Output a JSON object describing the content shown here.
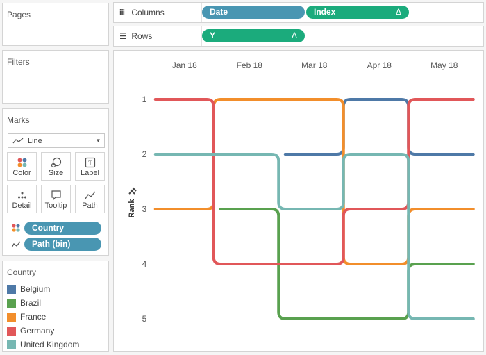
{
  "left_panel": {
    "pages_title": "Pages",
    "filters_title": "Filters",
    "marks": {
      "title": "Marks",
      "mark_type": "Line",
      "buttons": [
        {
          "label": "Color",
          "icon": "color-dots-icon"
        },
        {
          "label": "Size",
          "icon": "size-icon"
        },
        {
          "label": "Label",
          "icon": "label-icon"
        },
        {
          "label": "Detail",
          "icon": "detail-dots-icon"
        },
        {
          "label": "Tooltip",
          "icon": "tooltip-icon"
        },
        {
          "label": "Path",
          "icon": "path-icon"
        }
      ],
      "fields": [
        {
          "label": "Country",
          "icon": "color-dots-icon"
        },
        {
          "label": "Path (bin)",
          "icon": "path-icon"
        }
      ]
    },
    "legend": {
      "title": "Country",
      "items": [
        {
          "label": "Belgium",
          "color": "#4e79a7"
        },
        {
          "label": "Brazil",
          "color": "#59a14f"
        },
        {
          "label": "France",
          "color": "#f28e2b"
        },
        {
          "label": "Germany",
          "color": "#e15759"
        },
        {
          "label": "United Kingdom",
          "color": "#76b7b2"
        }
      ]
    }
  },
  "shelves": {
    "columns": {
      "label": "Columns",
      "pills": [
        {
          "label": "Date",
          "color": "#4996b2",
          "delta": ""
        },
        {
          "label": "Index",
          "color": "#1bab7c",
          "delta": "Δ"
        }
      ]
    },
    "rows": {
      "label": "Rows",
      "pills": [
        {
          "label": "Y",
          "color": "#1bab7c",
          "delta": "Δ"
        }
      ]
    }
  },
  "chart_data": {
    "type": "line",
    "subtype": "bump",
    "categories": [
      "Jan 18",
      "Feb 18",
      "Mar 18",
      "Apr 18",
      "May 18"
    ],
    "ylabel": "Rank",
    "y_ticks": [
      1,
      2,
      3,
      4,
      5
    ],
    "y_reversed": true,
    "series": [
      {
        "name": "Belgium",
        "color": "#4e79a7",
        "values": [
          null,
          null,
          2,
          1,
          2
        ]
      },
      {
        "name": "Brazil",
        "color": "#59a14f",
        "values": [
          null,
          3,
          5,
          5,
          4
        ]
      },
      {
        "name": "France",
        "color": "#f28e2b",
        "values": [
          3,
          1,
          1,
          4,
          3
        ]
      },
      {
        "name": "Germany",
        "color": "#e15759",
        "values": [
          1,
          4,
          4,
          3,
          1
        ]
      },
      {
        "name": "United Kingdom",
        "color": "#76b7b2",
        "values": [
          2,
          2,
          3,
          2,
          5
        ]
      }
    ]
  }
}
